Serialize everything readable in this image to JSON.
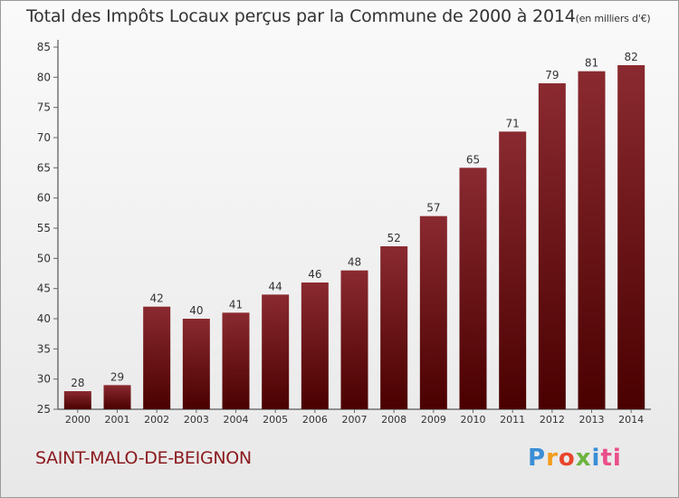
{
  "title": "Total des Impôts Locaux perçus par la Commune de 2000 à 2014",
  "subtitle": "(en milliers d'€)",
  "commune": "SAINT-MALO-DE-BEIGNON",
  "logo": [
    "P",
    "r",
    "o",
    "x",
    "i",
    "ti"
  ],
  "colors": {
    "bar_top": "#8a2a30",
    "bar_bottom": "#4a0000",
    "axis": "#333333",
    "grid_tick": "#666666"
  },
  "chart_data": {
    "type": "bar",
    "title": "Total des Impôts Locaux perçus par la Commune de 2000 à 2014",
    "ylabel": "en milliers d'€",
    "xlabel": "",
    "categories": [
      "2000",
      "2001",
      "2002",
      "2003",
      "2004",
      "2005",
      "2006",
      "2007",
      "2008",
      "2009",
      "2010",
      "2011",
      "2012",
      "2013",
      "2014"
    ],
    "values": [
      28,
      29,
      42,
      40,
      41,
      44,
      46,
      48,
      52,
      57,
      65,
      71,
      79,
      81,
      82
    ],
    "ylim": [
      25,
      85
    ],
    "yticks": [
      25,
      30,
      35,
      40,
      45,
      50,
      55,
      60,
      65,
      70,
      75,
      80,
      85
    ]
  }
}
